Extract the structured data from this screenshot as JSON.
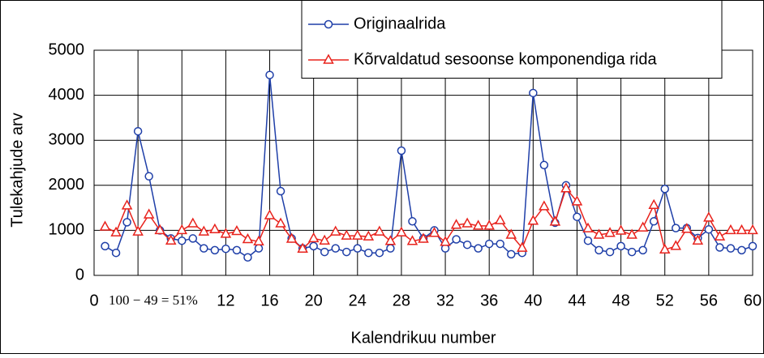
{
  "chart_data": {
    "type": "line",
    "xlabel": "Kalendrikuu number",
    "ylabel": "Tulekahjude arv",
    "annotation": "100 − 49 = 51%",
    "x": [
      1,
      2,
      3,
      4,
      5,
      6,
      7,
      8,
      9,
      10,
      11,
      12,
      13,
      14,
      15,
      16,
      17,
      18,
      19,
      20,
      21,
      22,
      23,
      24,
      25,
      26,
      27,
      28,
      29,
      30,
      31,
      32,
      33,
      34,
      35,
      36,
      37,
      38,
      39,
      40,
      41,
      42,
      43,
      44,
      45,
      46,
      47,
      48,
      49,
      50,
      51,
      52,
      53,
      54,
      55,
      56,
      57,
      58,
      59,
      60
    ],
    "series": [
      {
        "name": "Originaalrida",
        "color": "#1f3fa8",
        "marker": "circle",
        "values": [
          650,
          500,
          1180,
          3200,
          2200,
          1000,
          820,
          770,
          820,
          600,
          560,
          590,
          560,
          400,
          600,
          4450,
          1870,
          820,
          600,
          650,
          520,
          600,
          520,
          600,
          500,
          500,
          600,
          2770,
          1200,
          820,
          1000,
          600,
          800,
          680,
          600,
          700,
          700,
          470,
          500,
          4050,
          2450,
          1170,
          2000,
          1300,
          770,
          560,
          520,
          650,
          520,
          560,
          1200,
          1920,
          1050,
          1050,
          830,
          1020,
          620,
          600,
          560,
          650
        ]
      },
      {
        "name": "Kõrvaldatud sesoonse komponendiga rida",
        "color": "#e8221c",
        "marker": "triangle",
        "values": [
          1080,
          950,
          1550,
          970,
          1350,
          1000,
          770,
          1000,
          1150,
          970,
          1020,
          920,
          980,
          800,
          750,
          1330,
          1150,
          810,
          590,
          820,
          770,
          970,
          880,
          880,
          860,
          970,
          760,
          950,
          760,
          810,
          940,
          740,
          1120,
          1150,
          1100,
          1100,
          1220,
          900,
          610,
          1210,
          1530,
          1190,
          1930,
          1640,
          1040,
          900,
          940,
          990,
          900,
          1060,
          1560,
          570,
          650,
          1030,
          770,
          1280,
          860,
          1000,
          1000,
          1000
        ]
      }
    ],
    "xlim": [
      0,
      60
    ],
    "xticks": [
      0,
      4,
      8,
      12,
      16,
      20,
      24,
      28,
      32,
      36,
      40,
      44,
      48,
      52,
      56,
      60
    ],
    "ylim": [
      0,
      5000
    ],
    "yticks": [
      0,
      1000,
      2000,
      3000,
      4000,
      5000
    ],
    "grid": true
  }
}
